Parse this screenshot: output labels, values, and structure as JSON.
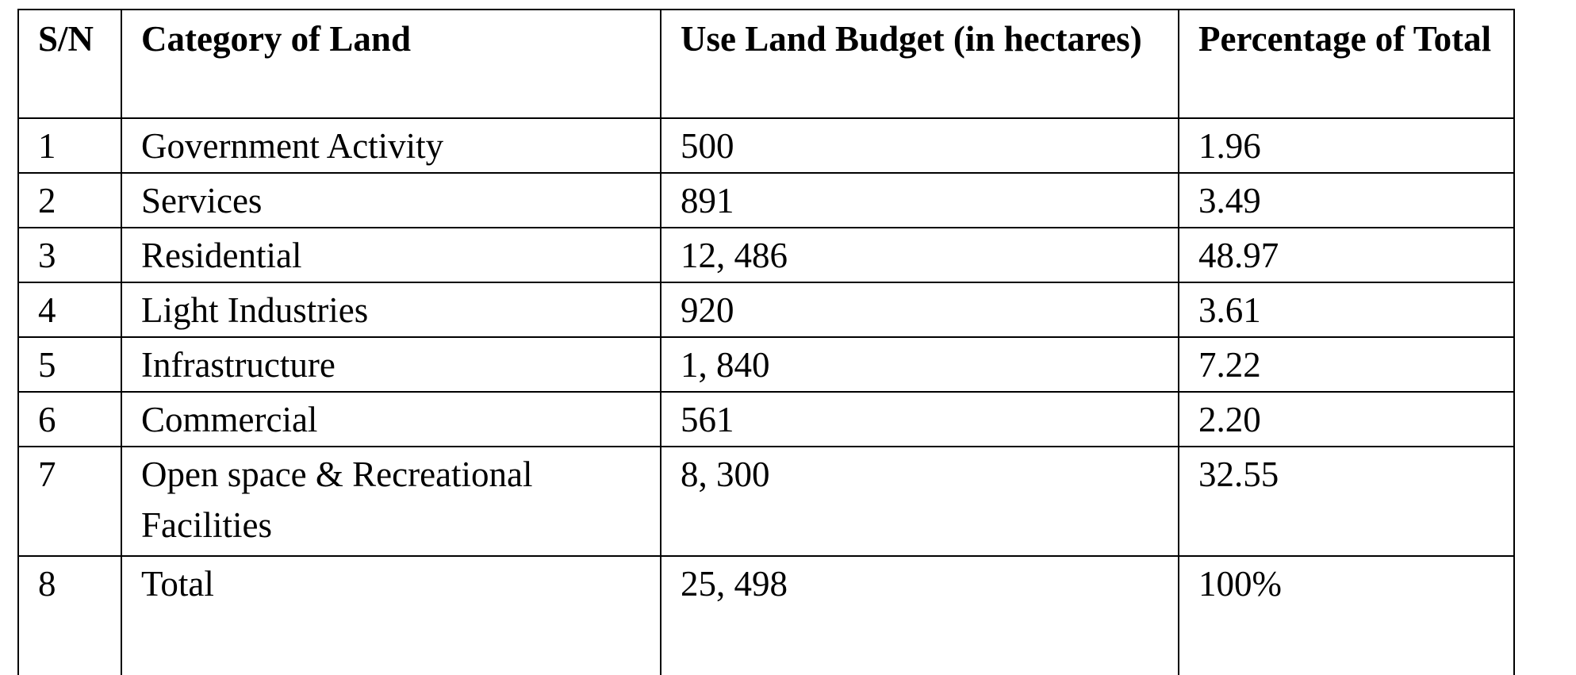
{
  "table": {
    "headers": {
      "sn": "S/N",
      "category": "Category of Land",
      "budget": "Use Land Budget (in hectares)",
      "percentage": "Percentage of Total"
    },
    "rows": [
      {
        "sn": "1",
        "category": "Government Activity",
        "budget": "500",
        "percentage": "1.96"
      },
      {
        "sn": "2",
        "category": "Services",
        "budget": "891",
        "percentage": "3.49"
      },
      {
        "sn": "3",
        "category": "Residential",
        "budget": "12, 486",
        "percentage": "48.97"
      },
      {
        "sn": "4",
        "category": "Light Industries",
        "budget": "920",
        "percentage": "3.61"
      },
      {
        "sn": "5",
        "category": "Infrastructure",
        "budget": "1, 840",
        "percentage": "7.22"
      },
      {
        "sn": "6",
        "category": "Commercial",
        "budget": "561",
        "percentage": "2.20"
      },
      {
        "sn": "7",
        "category": "Open space & Recreational Facilities",
        "budget": "8, 300",
        "percentage": "32.55"
      }
    ],
    "total": {
      "sn": "8",
      "category": "Total",
      "budget": "25, 498",
      "percentage": "100%"
    }
  }
}
